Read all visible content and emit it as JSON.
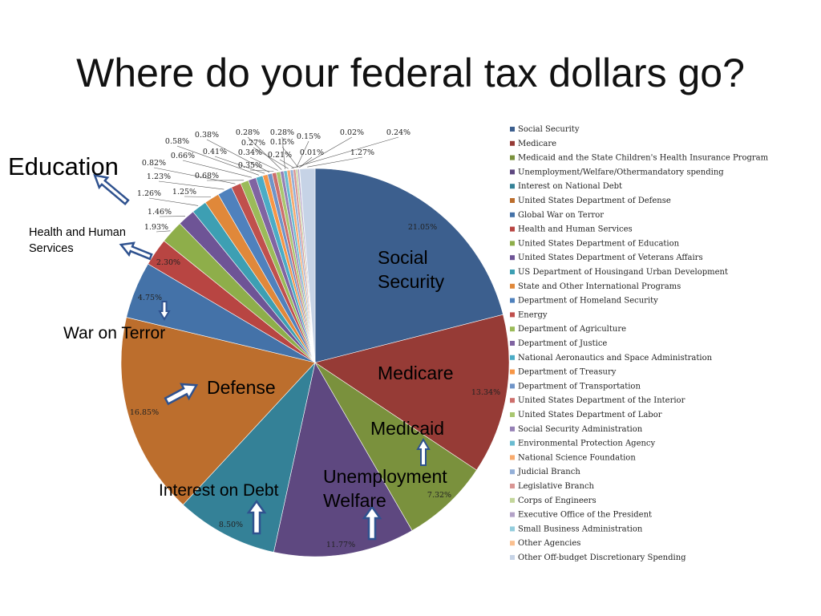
{
  "slide": {
    "title": "Where do your federal tax dollars go?"
  },
  "chart_data": {
    "type": "pie",
    "slices": [
      {
        "label": "Social Security",
        "value": 21.05,
        "pct_label": "21.05%",
        "color": "#3c5f8e"
      },
      {
        "label": "Medicare",
        "value": 13.34,
        "pct_label": "13.34%",
        "color": "#963b36"
      },
      {
        "label": "Medicaid and the State Children's Health Insurance Program",
        "value": 7.32,
        "pct_label": "7.32%",
        "color": "#7a913d"
      },
      {
        "label": "Unemployment/Welfare/Othermandatory spending",
        "value": 11.77,
        "pct_label": "11.77%",
        "color": "#5e4880"
      },
      {
        "label": "Interest on National Debt",
        "value": 8.5,
        "pct_label": "8.50%",
        "color": "#348197"
      },
      {
        "label": "United States Department of Defense",
        "value": 16.85,
        "pct_label": "16.85%",
        "color": "#bc6e2d"
      },
      {
        "label": "Global War on Terror",
        "value": 4.75,
        "pct_label": "4.75%",
        "color": "#4472a8"
      },
      {
        "label": "Health and Human Services",
        "value": 2.3,
        "pct_label": "2.30%",
        "color": "#b84542"
      },
      {
        "label": "United States Department of Education",
        "value": 1.93,
        "pct_label": "1.93%",
        "color": "#8eae4a"
      },
      {
        "label": "United States Department of Veterans Affairs",
        "value": 1.46,
        "pct_label": "1.46%",
        "color": "#6e5496"
      },
      {
        "label": "US Department of Housingand Urban Development",
        "value": 1.26,
        "pct_label": "1.26%",
        "color": "#3d9fb3"
      },
      {
        "label": "State and Other International Programs",
        "value": 1.25,
        "pct_label": "1.25%",
        "color": "#e0883a"
      },
      {
        "label": "Department of Homeland Security",
        "value": 1.23,
        "pct_label": "1.23%",
        "color": "#4f81bd"
      },
      {
        "label": "Energy",
        "value": 0.82,
        "pct_label": "0.82%",
        "color": "#c0504d"
      },
      {
        "label": "Department of Agriculture",
        "value": 0.68,
        "pct_label": "0.68%",
        "color": "#9bbb59"
      },
      {
        "label": "Department of Justice",
        "value": 0.66,
        "pct_label": "0.66%",
        "color": "#8064a2"
      },
      {
        "label": "National Aeronautics and Space Administration",
        "value": 0.58,
        "pct_label": "0.58%",
        "color": "#4bacc6"
      },
      {
        "label": "Department of Treasury",
        "value": 0.41,
        "pct_label": "0.41%",
        "color": "#f79646"
      },
      {
        "label": "Department of Transportation",
        "value": 0.38,
        "pct_label": "0.38%",
        "color": "#6f94c8"
      },
      {
        "label": "United States Department of the Interior",
        "value": 0.35,
        "pct_label": "0.35%",
        "color": "#cd6f6c"
      },
      {
        "label": "United States Department of Labor",
        "value": 0.34,
        "pct_label": "0.34%",
        "color": "#a9c770"
      },
      {
        "label": "Social Security Administration",
        "value": 0.28,
        "pct_label": "0.28%",
        "color": "#9580b5"
      },
      {
        "label": "Environmental Protection Agency",
        "value": 0.28,
        "pct_label": "0.28%",
        "color": "#6abcd1"
      },
      {
        "label": "National Science Foundation",
        "value": 0.27,
        "pct_label": "0.27%",
        "color": "#f8ab6e"
      },
      {
        "label": "Judicial Branch",
        "value": 0.24,
        "pct_label": "0.24%",
        "color": "#94b0d8"
      },
      {
        "label": "Legislative Branch",
        "value": 0.21,
        "pct_label": "0.21%",
        "color": "#d99694"
      },
      {
        "label": "Corps of Engineers",
        "value": 0.15,
        "pct_label": "0.15%",
        "color": "#c3d69b"
      },
      {
        "label": "Executive Office of the President",
        "value": 0.15,
        "pct_label": "0.15%",
        "color": "#b3a2c7"
      },
      {
        "label": "Small Business Administration",
        "value": 0.02,
        "pct_label": "0.02%",
        "color": "#93cddd"
      },
      {
        "label": "Other Agencies",
        "value": 0.01,
        "pct_label": "0.01%",
        "color": "#fac090"
      },
      {
        "label": "Other Off-budget Discretionary Spending",
        "value": 1.27,
        "pct_label": "1.27%",
        "color": "#c6d3e6"
      }
    ]
  },
  "callouts": {
    "social_security": [
      "Social",
      "Security"
    ],
    "medicare": "Medicare",
    "medicaid": "Medicaid",
    "unemployment": [
      "Unemployment",
      "Welfare"
    ],
    "interest": "Interest on Debt",
    "defense": "Defense",
    "war_on_terror": "War on Terror",
    "health": [
      "Health and Human",
      "Services"
    ],
    "education": "Education"
  }
}
